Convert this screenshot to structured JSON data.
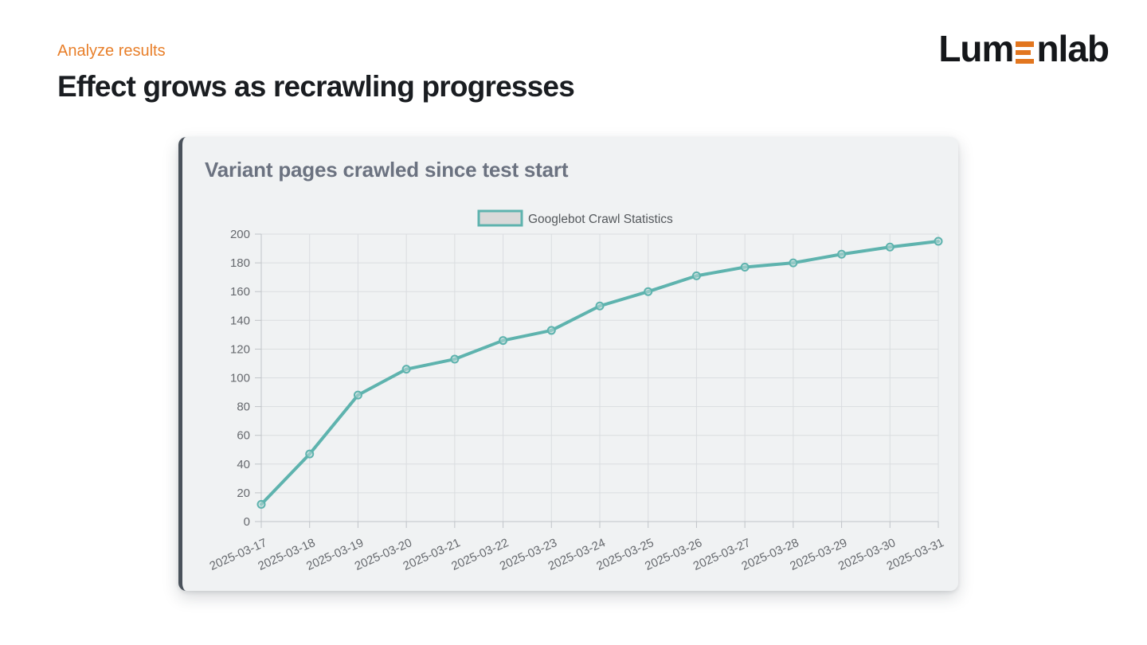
{
  "page": {
    "eyebrow": "Analyze results",
    "title": "Effect grows as recrawling progresses"
  },
  "logo": {
    "prefix": "Lum",
    "suffix": "nlab"
  },
  "card": {
    "title": "Variant pages crawled since test start"
  },
  "colors": {
    "eyebrow_orange": "#e87f2a",
    "accent_orange": "#e2761f",
    "title_text": "#1a1d21",
    "logo_text": "#15171a",
    "card_bg": "#f0f2f3",
    "card_border": "#4a525b",
    "chart_title_text": "#6b7280",
    "line_teal": "#5eb3ae",
    "point_fill": "#bcd9d7",
    "grid_line": "#dadde0",
    "axis_line": "#c0c4c8",
    "axis_text": "#66696e",
    "legend_text": "#54585c",
    "legend_box_fill": "#d9d9d9"
  },
  "chart_data": {
    "type": "line",
    "title": "Variant pages crawled since test start",
    "legend_entries": [
      "Googlebot Crawl Statistics"
    ],
    "legend_position": "top-center",
    "grid": true,
    "xlabel": "",
    "ylabel": "",
    "ylim": [
      0,
      200
    ],
    "ytick_step": 20,
    "x_label_rotation": -24,
    "categories": [
      "2025-03-17",
      "2025-03-18",
      "2025-03-19",
      "2025-03-20",
      "2025-03-21",
      "2025-03-22",
      "2025-03-23",
      "2025-03-24",
      "2025-03-25",
      "2025-03-26",
      "2025-03-27",
      "2025-03-28",
      "2025-03-29",
      "2025-03-30",
      "2025-03-31"
    ],
    "series": [
      {
        "name": "Googlebot Crawl Statistics",
        "values": [
          12,
          47,
          88,
          106,
          113,
          126,
          133,
          150,
          160,
          171,
          177,
          180,
          186,
          191,
          195
        ]
      }
    ]
  }
}
